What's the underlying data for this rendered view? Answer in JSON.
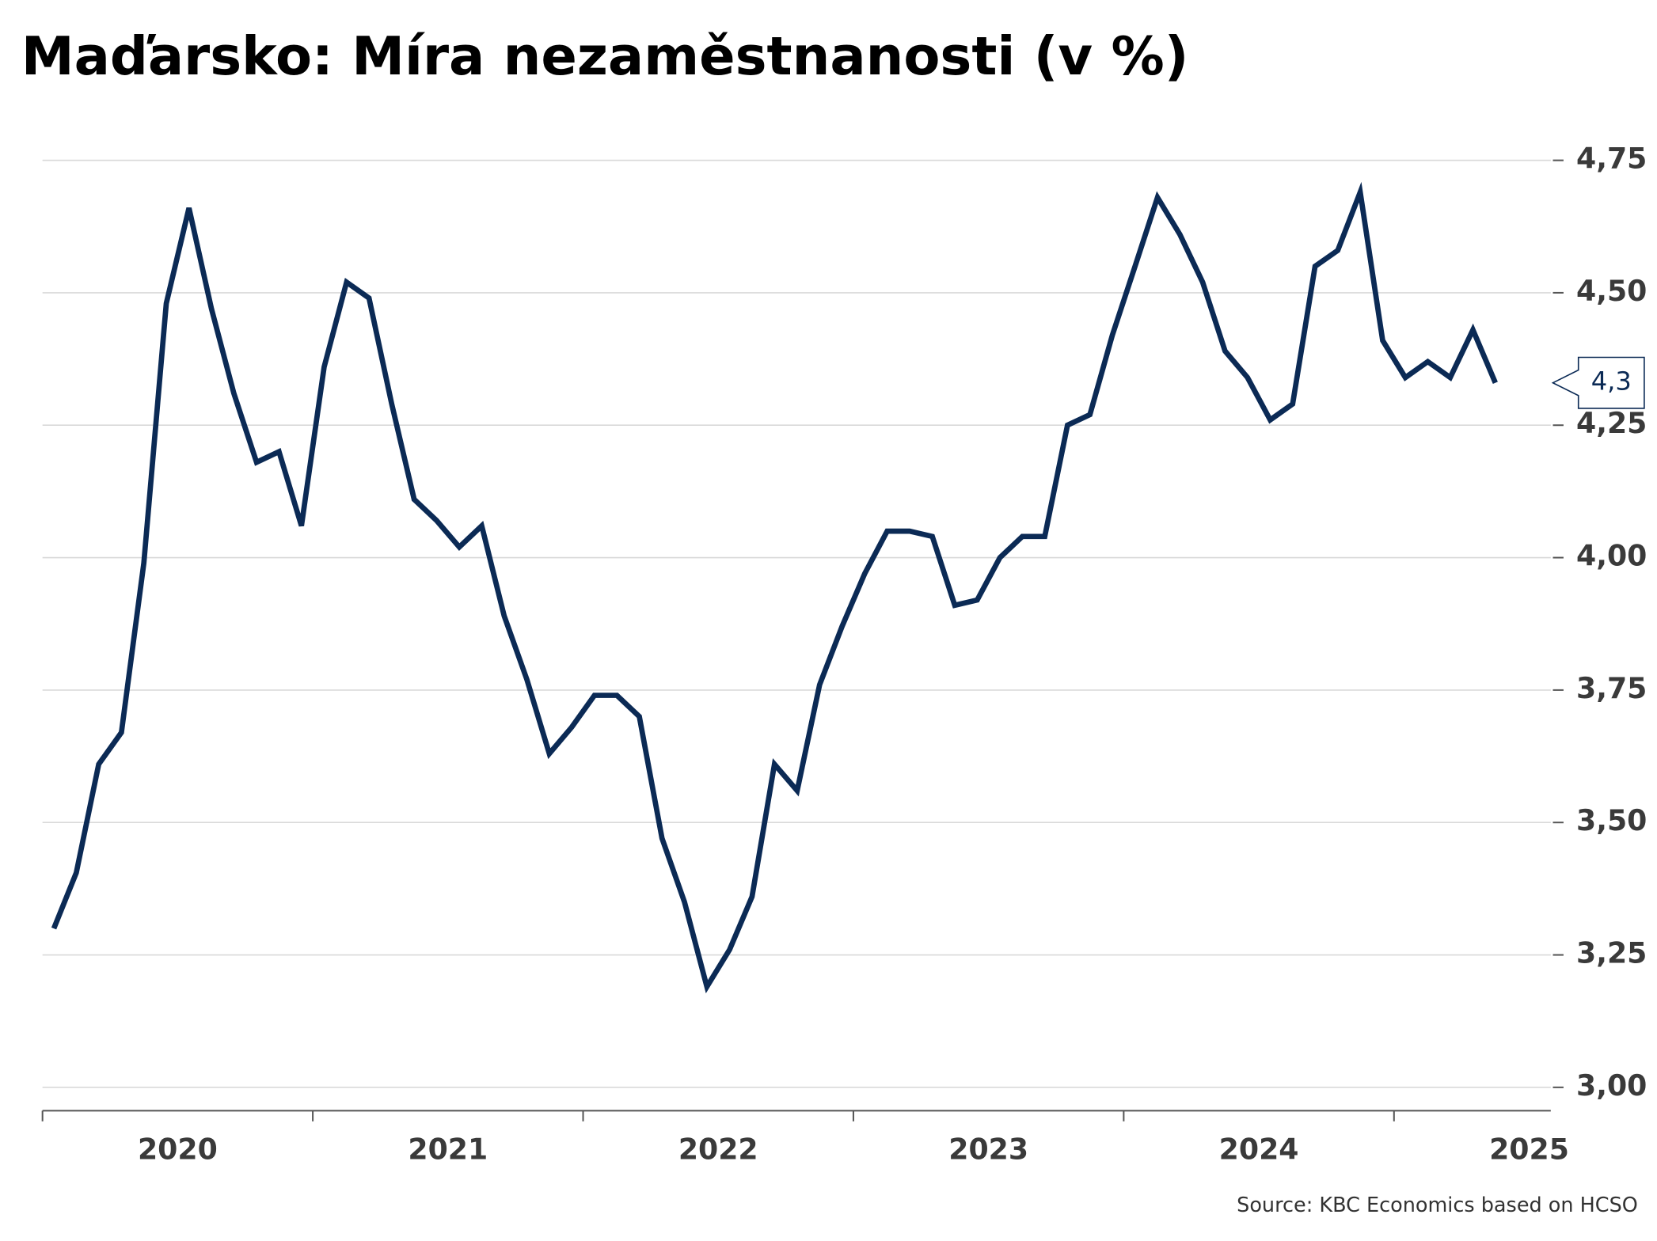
{
  "chart_data": {
    "type": "line",
    "title": "Maďarsko: Míra nezaměstnanosti (v %)",
    "source": "Source: KBC Economics based on HCSO",
    "x": [
      2020.042,
      2020.125,
      2020.208,
      2020.292,
      2020.375,
      2020.458,
      2020.542,
      2020.625,
      2020.708,
      2020.792,
      2020.875,
      2020.958,
      2021.042,
      2021.125,
      2021.208,
      2021.292,
      2021.375,
      2021.458,
      2021.542,
      2021.625,
      2021.708,
      2021.792,
      2021.875,
      2021.958,
      2022.042,
      2022.125,
      2022.208,
      2022.292,
      2022.375,
      2022.458,
      2022.542,
      2022.625,
      2022.708,
      2022.792,
      2022.875,
      2022.958,
      2023.042,
      2023.125,
      2023.208,
      2023.292,
      2023.375,
      2023.458,
      2023.542,
      2023.625,
      2023.708,
      2023.792,
      2023.875,
      2023.958,
      2024.042,
      2024.125,
      2024.208,
      2024.292,
      2024.375,
      2024.458,
      2024.542,
      2024.625,
      2024.708,
      2024.792,
      2024.875,
      2024.958,
      2025.042,
      2025.125,
      2025.208,
      2025.292,
      2025.375
    ],
    "series": [
      {
        "name": "Míra nezaměstnanosti",
        "color": "#0b2a55",
        "values": [
          3.3,
          3.405,
          3.61,
          3.67,
          3.99,
          4.48,
          4.66,
          4.47,
          4.31,
          4.18,
          4.2,
          4.06,
          4.36,
          4.52,
          4.49,
          4.29,
          4.11,
          4.07,
          4.02,
          4.06,
          3.89,
          3.77,
          3.63,
          3.68,
          3.74,
          3.74,
          3.7,
          3.47,
          3.35,
          3.19,
          3.26,
          3.36,
          3.61,
          3.56,
          3.76,
          3.87,
          3.97,
          4.05,
          4.05,
          4.04,
          3.91,
          3.92,
          4.0,
          4.04,
          4.04,
          4.25,
          4.27,
          4.42,
          4.55,
          4.68,
          4.61,
          4.52,
          4.39,
          4.34,
          4.26,
          4.29,
          4.55,
          4.58,
          4.69,
          4.41,
          4.34,
          4.37,
          4.34,
          4.43,
          4.33
        ],
        "value_labels": [
          null,
          null,
          null,
          null,
          null,
          null,
          null,
          null,
          null,
          null,
          null,
          null,
          null,
          null,
          null,
          null,
          null,
          null,
          null,
          null,
          null,
          null,
          null,
          null,
          null,
          null,
          null,
          null,
          null,
          null,
          null,
          null,
          null,
          null,
          null,
          null,
          null,
          null,
          null,
          null,
          null,
          null,
          null,
          null,
          null,
          null,
          null,
          null,
          null,
          null,
          null,
          null,
          null,
          null,
          null,
          null,
          null,
          null,
          null,
          null,
          null,
          null,
          null,
          null,
          "4,3"
        ]
      }
    ],
    "xlim": [
      2020,
      2025.58
    ],
    "xticks": [
      2020,
      2021,
      2022,
      2023,
      2024,
      2025
    ],
    "ylim": [
      3.0,
      4.75
    ],
    "yticks": [
      {
        "value": 3.0,
        "label": "3,00"
      },
      {
        "value": 3.25,
        "label": "3,25"
      },
      {
        "value": 3.5,
        "label": "3,50"
      },
      {
        "value": 3.75,
        "label": "3,75"
      },
      {
        "value": 4.0,
        "label": "4,00"
      },
      {
        "value": 4.25,
        "label": "4,25"
      },
      {
        "value": 4.5,
        "label": "4,50"
      },
      {
        "value": 4.75,
        "label": "4,75"
      }
    ],
    "y_axis_side": "right",
    "grid": true
  }
}
